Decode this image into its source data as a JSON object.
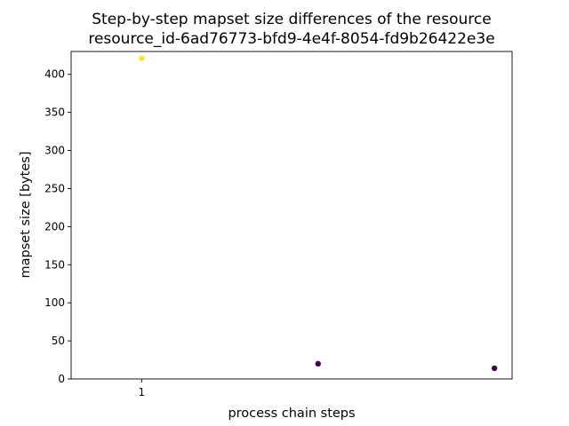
{
  "chart_data": {
    "type": "scatter",
    "title_line1": "Step-by-step mapset size differences of the resource",
    "title_line2": "resource_id-6ad76773-bfd9-4e4f-8054-fd9b26422e3e",
    "xlabel": "process chain steps",
    "ylabel": "mapset size [bytes]",
    "xlim": [
      0.6,
      3.1
    ],
    "ylim": [
      0,
      430
    ],
    "x_ticks": [
      1
    ],
    "x_tick_labels": [
      "1"
    ],
    "y_ticks": [
      0,
      50,
      100,
      150,
      200,
      250,
      300,
      350,
      400
    ],
    "y_tick_labels": [
      "0",
      "50",
      "100",
      "150",
      "200",
      "250",
      "300",
      "350",
      "400"
    ],
    "grid": false,
    "points": [
      {
        "x": 1,
        "y": 421,
        "color": "#fde725"
      },
      {
        "x": 2,
        "y": 20,
        "color": "#440154"
      },
      {
        "x": 3,
        "y": 14,
        "color": "#440154"
      }
    ]
  }
}
